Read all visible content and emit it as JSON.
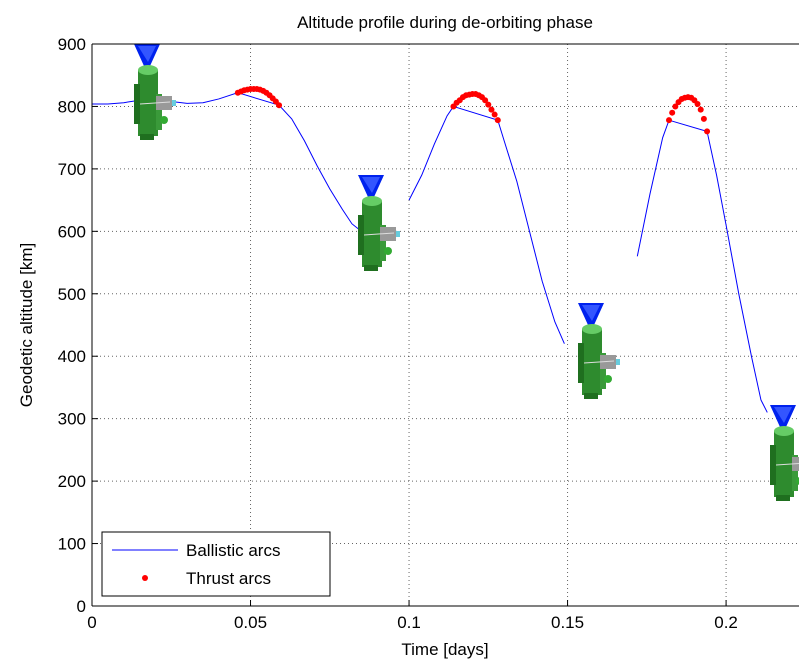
{
  "chart_data": {
    "type": "line",
    "title": "Altitude profile during de-orbiting phase",
    "x_label": "Time [days]",
    "y_label": "Geodetic altitude [km]",
    "xlim": [
      0,
      0.223
    ],
    "ylim": [
      0,
      900
    ],
    "xticks": [
      0,
      0.05,
      0.1,
      0.15,
      0.2
    ],
    "yticks": [
      0,
      100,
      200,
      300,
      400,
      500,
      600,
      700,
      800,
      900
    ],
    "grid": true,
    "legend_position": "lower left",
    "series": [
      {
        "name": "Ballistic arcs",
        "color": "#0000ff",
        "style": "line",
        "x": [
          0,
          0.005,
          0.01,
          0.015,
          0.02,
          0.025,
          0.03,
          0.035,
          0.04,
          0.046,
          0.059,
          0.063,
          0.067,
          0.071,
          0.075,
          0.079,
          0.082,
          0.085,
          0.0984,
          0.1,
          0.104,
          0.108,
          0.112,
          0.114,
          0.128,
          0.13,
          0.134,
          0.138,
          0.142,
          0.146,
          0.149,
          0.168,
          0.172,
          0.176,
          0.18,
          0.182,
          0.194,
          0.197,
          0.2,
          0.204,
          0.208,
          0.211,
          0.213
        ],
        "values": [
          804,
          804,
          806,
          810,
          812,
          808,
          805,
          806,
          812,
          822,
          802,
          780,
          745,
          705,
          668,
          635,
          612,
          600,
          null,
          650,
          690,
          740,
          785,
          800,
          778,
          745,
          680,
          600,
          520,
          455,
          420,
          null,
          560,
          660,
          750,
          778,
          760,
          690,
          610,
          500,
          400,
          330,
          310
        ]
      },
      {
        "name": "Thrust arcs",
        "color": "#ff0000",
        "style": "dots",
        "x": [
          0.046,
          0.047,
          0.048,
          0.049,
          0.05,
          0.051,
          0.052,
          0.053,
          0.054,
          0.055,
          0.056,
          0.057,
          0.058,
          0.059,
          0.114,
          0.115,
          0.116,
          0.117,
          0.118,
          0.119,
          0.12,
          0.121,
          0.122,
          0.123,
          0.124,
          0.125,
          0.126,
          0.127,
          0.128,
          0.182,
          0.183,
          0.184,
          0.185,
          0.186,
          0.187,
          0.188,
          0.189,
          0.19,
          0.191,
          0.192,
          0.193,
          0.194
        ],
        "values": [
          822,
          824,
          826,
          827,
          828,
          828,
          828,
          827,
          825,
          822,
          818,
          813,
          808,
          802,
          800,
          806,
          810,
          815,
          818,
          819,
          820,
          820,
          818,
          815,
          810,
          803,
          795,
          787,
          778,
          778,
          790,
          800,
          807,
          812,
          814,
          815,
          814,
          810,
          804,
          795,
          780,
          760
        ]
      }
    ]
  }
}
